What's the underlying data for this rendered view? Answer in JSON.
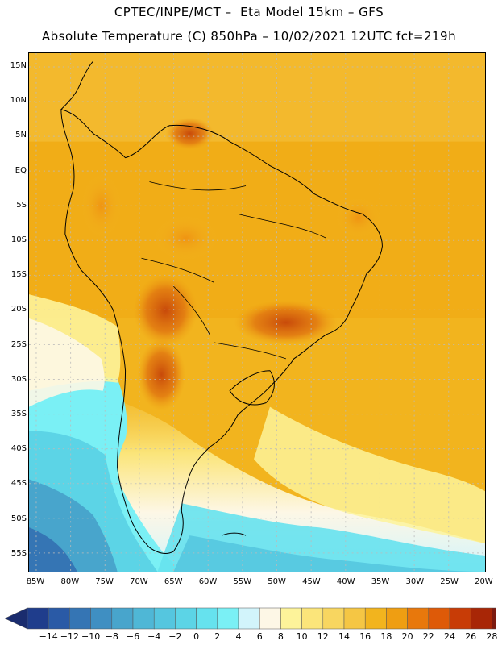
{
  "header": {
    "title_line1": "CPTEC/INPE/MCT –  Eta Model 15km – GFS",
    "title_line2": "Absolute Temperature (C) 850hPa – 10/02/2021 12UTC fct=219h"
  },
  "axes": {
    "lat_labels": [
      "15N",
      "10N",
      "5N",
      "EQ",
      "5S",
      "10S",
      "15S",
      "20S",
      "25S",
      "30S",
      "35S",
      "40S",
      "45S",
      "50S",
      "55S"
    ],
    "lon_labels": [
      "85W",
      "80W",
      "75W",
      "70W",
      "65W",
      "60W",
      "55W",
      "50W",
      "45W",
      "40W",
      "35W",
      "30W",
      "25W",
      "20W"
    ]
  },
  "legend": {
    "labels": [
      "-14",
      "-12",
      "-10",
      "-8",
      "-6",
      "-4",
      "-2",
      "0",
      "2",
      "4",
      "6",
      "8",
      "10",
      "12",
      "14",
      "16",
      "18",
      "20",
      "22",
      "24",
      "26",
      "28"
    ],
    "colors": [
      "#1f3d8c",
      "#2a5aa6",
      "#3575b4",
      "#3f8fc2",
      "#48a5cc",
      "#4fb7d6",
      "#55c6df",
      "#5cd4e6",
      "#66e2ee",
      "#7af0f5",
      "#d2f4fb",
      "#fdf7e6",
      "#fdf39a",
      "#fbe57a",
      "#f8d660",
      "#f5c644",
      "#f2b41e",
      "#ef9e12",
      "#e8780c",
      "#de5a08",
      "#c83c06",
      "#a82606",
      "#7c1a10"
    ],
    "under_color": "#1a2c6e",
    "over_color": "#6e0a18"
  }
}
